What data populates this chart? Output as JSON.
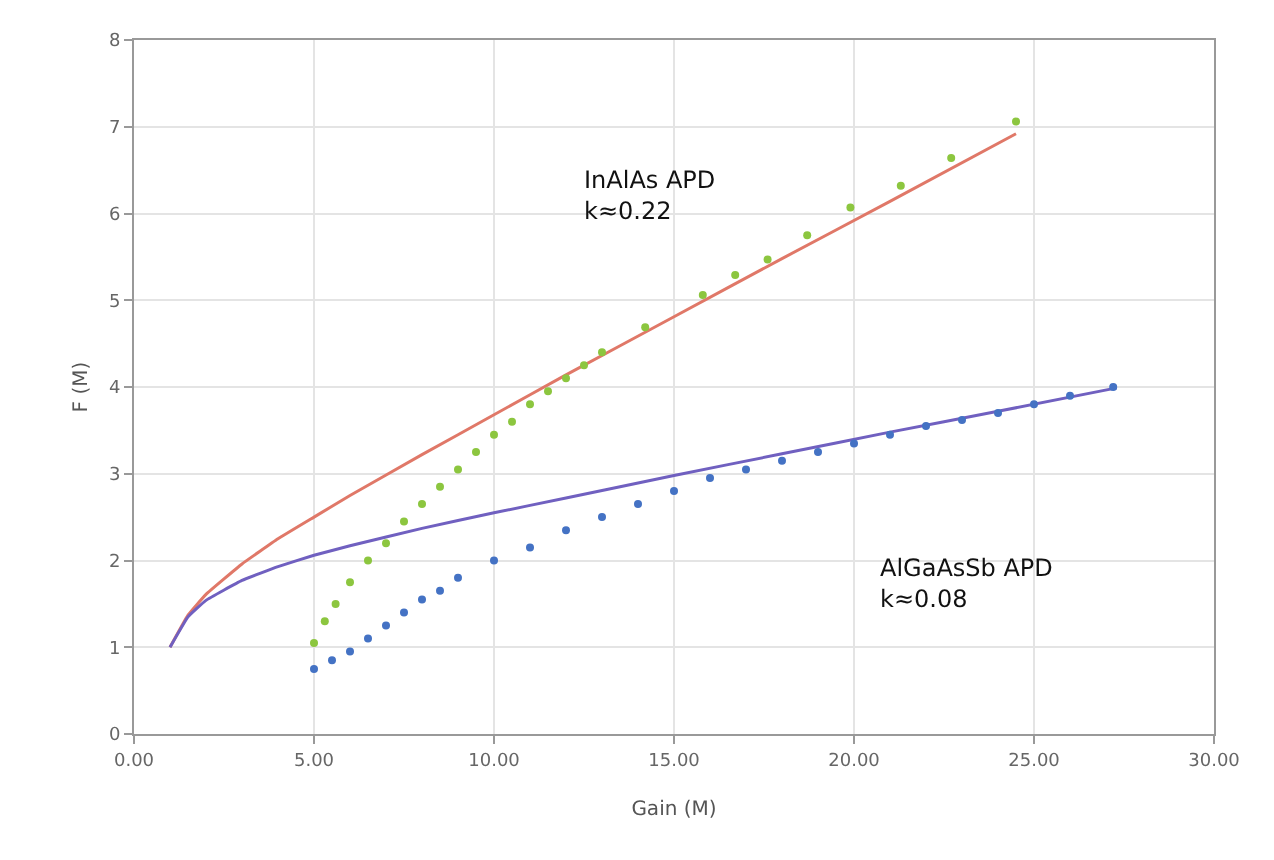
{
  "chart_data": {
    "type": "scatter",
    "xlabel": "Gain (M)",
    "ylabel": "F (M)",
    "xlim": [
      0,
      30
    ],
    "ylim": [
      0,
      8
    ],
    "xticks": [
      {
        "value": 0,
        "label": "0.00"
      },
      {
        "value": 5,
        "label": "5.00"
      },
      {
        "value": 10,
        "label": "10.00"
      },
      {
        "value": 15,
        "label": "15.00"
      },
      {
        "value": 20,
        "label": "20.00"
      },
      {
        "value": 25,
        "label": "25.00"
      },
      {
        "value": 30,
        "label": "30.00"
      }
    ],
    "yticks": [
      0,
      1,
      2,
      3,
      4,
      5,
      6,
      7,
      8
    ],
    "grid": true,
    "series": [
      {
        "type": "line",
        "color": "#e07868",
        "marker": "none",
        "x": [
          1,
          1.5,
          2,
          3,
          4,
          5,
          6,
          8,
          10,
          12,
          15,
          18,
          21,
          24.5
        ],
        "values": [
          1.0,
          1.37,
          1.61,
          1.96,
          2.25,
          2.5,
          2.75,
          3.22,
          3.68,
          4.14,
          4.81,
          5.48,
          6.14,
          6.92
        ]
      },
      {
        "type": "line",
        "color": "#7060c0",
        "marker": "none",
        "x": [
          1,
          1.5,
          2,
          3,
          4,
          5,
          6,
          8,
          10,
          12,
          15,
          18,
          21,
          24,
          27.3
        ],
        "values": [
          1.0,
          1.35,
          1.54,
          1.77,
          1.93,
          2.06,
          2.17,
          2.37,
          2.55,
          2.72,
          2.98,
          3.23,
          3.48,
          3.72,
          3.99
        ]
      },
      {
        "color": "#8cc63f",
        "marker": "circle",
        "x": [
          5,
          5.3,
          5.6,
          6,
          6.5,
          7,
          7.5,
          8,
          8.5,
          9,
          9.5,
          10,
          10.5,
          11,
          11.5,
          12,
          12.5,
          13,
          14.2,
          15.8,
          16.7,
          17.6,
          18.7,
          19.9,
          21.3,
          22.7,
          24.5
        ],
        "values": [
          1.05,
          1.3,
          1.5,
          1.75,
          2.0,
          2.2,
          2.45,
          2.65,
          2.85,
          3.05,
          3.25,
          3.45,
          3.6,
          3.8,
          3.95,
          4.1,
          4.25,
          4.4,
          4.69,
          5.06,
          5.29,
          5.47,
          5.75,
          6.07,
          6.32,
          6.64,
          7.06
        ]
      },
      {
        "color": "#4472c4",
        "marker": "circle",
        "x": [
          5,
          5.5,
          6,
          6.5,
          7,
          7.5,
          8,
          8.5,
          9,
          10,
          11,
          12,
          13,
          14,
          15,
          16,
          17,
          18,
          19,
          20,
          21,
          22,
          23,
          24,
          25,
          26,
          27.2
        ],
        "values": [
          0.75,
          0.85,
          0.95,
          1.1,
          1.25,
          1.4,
          1.55,
          1.65,
          1.8,
          2.0,
          2.15,
          2.35,
          2.5,
          2.65,
          2.8,
          2.95,
          3.05,
          3.15,
          3.25,
          3.35,
          3.45,
          3.55,
          3.62,
          3.7,
          3.8,
          3.9,
          4.0
        ]
      }
    ],
    "annotations": [
      "InAlAs APD\nk≈0.22",
      "AlGaAsSb APD\nk≈0.08"
    ]
  }
}
